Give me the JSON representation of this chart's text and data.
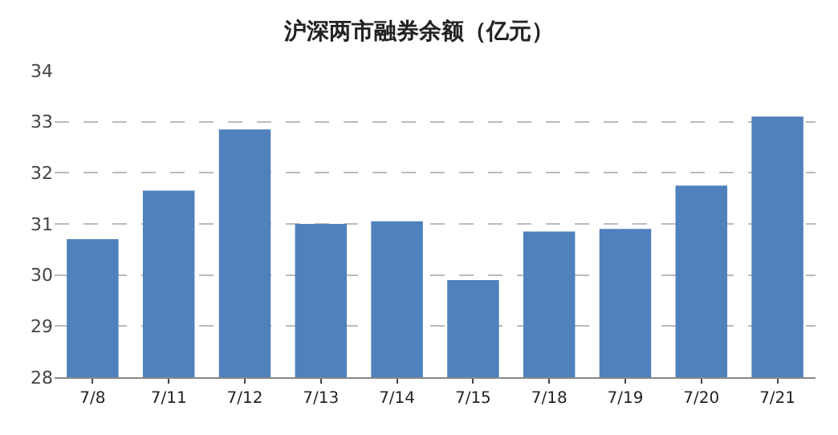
{
  "chart_data": {
    "type": "bar",
    "title": "沪深两市融券余额（亿元）",
    "categories": [
      "7/8",
      "7/11",
      "7/12",
      "7/13",
      "7/14",
      "7/15",
      "7/18",
      "7/19",
      "7/20",
      "7/21"
    ],
    "values": [
      30.7,
      31.65,
      32.85,
      31.0,
      31.05,
      29.9,
      30.85,
      30.9,
      31.75,
      33.1
    ],
    "color": "#4f81bd",
    "ylim": [
      28,
      34
    ],
    "yticks": [
      28,
      29,
      30,
      31,
      32,
      33,
      34
    ],
    "grid": "y",
    "legend": false
  }
}
